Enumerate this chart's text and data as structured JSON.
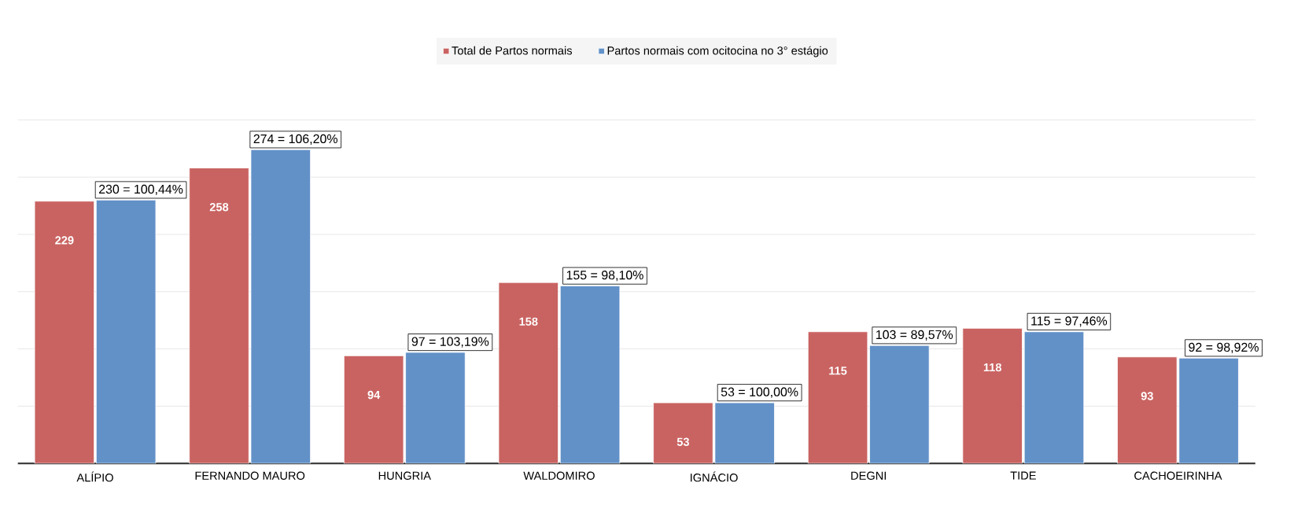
{
  "chart_data": {
    "type": "bar",
    "categories": [
      "ALÍPIO",
      "FERNANDO MAURO",
      "HUNGRIA",
      "WALDOMIRO",
      "IGNÁCIO",
      "DEGNI",
      "TIDE",
      "CACHOEIRINHA"
    ],
    "series": [
      {
        "name": "Total de Partos normais",
        "color": "#c96361",
        "values": [
          229,
          258,
          94,
          158,
          53,
          115,
          118,
          93
        ],
        "value_labels": [
          "229",
          "258",
          "94",
          "158",
          "53",
          "115",
          "118",
          "93"
        ]
      },
      {
        "name": "Partos normais com ocitocina no 3° estágio",
        "color": "#6291c8",
        "values": [
          230,
          274,
          97,
          155,
          53,
          103,
          115,
          92
        ],
        "value_labels": [
          "230 = 100,44%",
          "274 = 106,20%",
          "97 = 103,19%",
          "155 = 98,10%",
          "53 = 100,00%",
          "103 = 89,57%",
          "115 = 97,46%",
          "92 = 98,92%"
        ]
      }
    ],
    "ylim": [
      0,
      300
    ],
    "yticks": [
      {
        "value": 50,
        "label": null
      },
      {
        "value": 100,
        "label": null
      },
      {
        "value": 150,
        "label": null
      },
      {
        "value": 200,
        "label": null
      },
      {
        "value": 250,
        "label": null
      },
      {
        "value": 300,
        "label": null
      }
    ],
    "grid": "y",
    "legend": "top",
    "tick_labels": "x"
  }
}
